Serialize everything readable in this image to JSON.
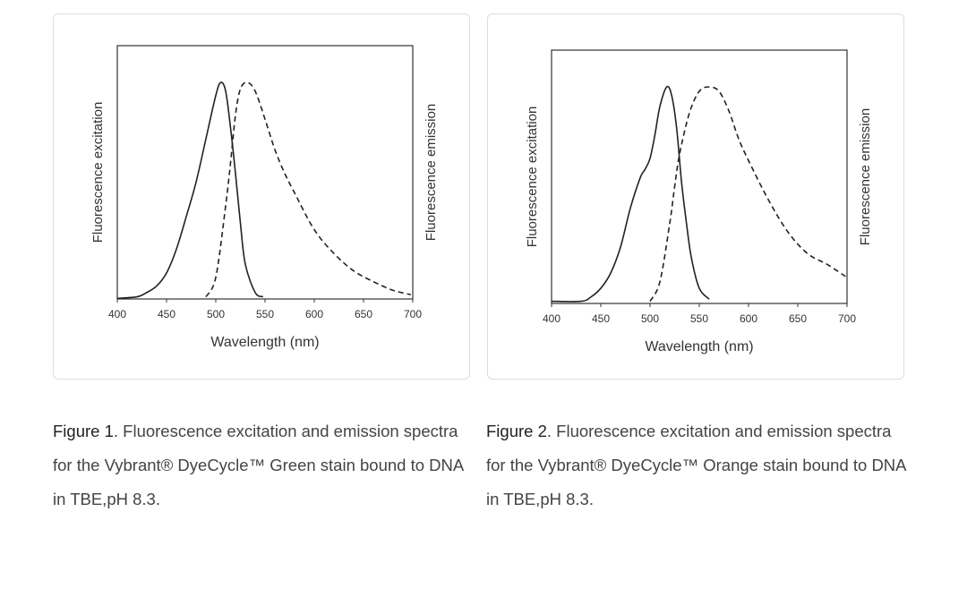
{
  "chart_data": [
    {
      "type": "line",
      "xlabel": "Wavelength (nm)",
      "ylabel": "Fluorescence excitation",
      "ylabel_right": "Fluorescence emission",
      "xlim": [
        400,
        700
      ],
      "ylim": [
        0,
        1.17
      ],
      "xticks": [
        "400",
        "450",
        "500",
        "550",
        "600",
        "650",
        "700"
      ],
      "grid": false,
      "series": [
        {
          "style": "solid",
          "x": [
            400,
            420,
            430,
            440,
            450,
            460,
            470,
            480,
            490,
            500,
            505,
            510,
            515,
            520,
            525,
            530,
            540,
            548
          ],
          "y": [
            0.003,
            0.01,
            0.03,
            0.06,
            0.12,
            0.23,
            0.38,
            0.54,
            0.74,
            0.94,
            1.0,
            0.96,
            0.79,
            0.58,
            0.35,
            0.16,
            0.03,
            0.01
          ]
        },
        {
          "style": "dashed",
          "x": [
            490,
            500,
            510,
            515,
            520,
            525,
            532,
            540,
            550,
            560,
            570,
            580,
            600,
            620,
            640,
            660,
            680,
            698
          ],
          "y": [
            0.01,
            0.1,
            0.43,
            0.63,
            0.85,
            0.97,
            1.0,
            0.96,
            0.83,
            0.69,
            0.58,
            0.49,
            0.32,
            0.21,
            0.13,
            0.08,
            0.04,
            0.02
          ]
        }
      ]
    },
    {
      "type": "line",
      "xlabel": "Wavelength (nm)",
      "ylabel": "Fluorescence excitation",
      "ylabel_right": "Fluorescence emission",
      "xlim": [
        400,
        700
      ],
      "ylim": [
        0,
        1.17
      ],
      "xticks": [
        "400",
        "450",
        "500",
        "550",
        "600",
        "650",
        "700"
      ],
      "grid": false,
      "series": [
        {
          "style": "solid",
          "x": [
            400,
            430,
            440,
            450,
            460,
            470,
            480,
            490,
            495,
            500,
            505,
            510,
            517,
            522,
            527,
            532,
            537,
            542,
            550,
            560
          ],
          "y": [
            0.01,
            0.01,
            0.03,
            0.07,
            0.14,
            0.26,
            0.44,
            0.58,
            0.62,
            0.67,
            0.78,
            0.91,
            1.0,
            0.96,
            0.81,
            0.56,
            0.37,
            0.21,
            0.07,
            0.02
          ]
        },
        {
          "style": "dashed",
          "x": [
            500,
            510,
            520,
            525,
            530,
            540,
            550,
            560,
            570,
            580,
            590,
            600,
            620,
            640,
            660,
            680,
            700
          ],
          "y": [
            0.01,
            0.1,
            0.37,
            0.54,
            0.69,
            0.88,
            0.98,
            1.0,
            0.98,
            0.89,
            0.76,
            0.66,
            0.48,
            0.33,
            0.23,
            0.18,
            0.12
          ]
        }
      ]
    }
  ],
  "captions": [
    {
      "label": "Figure 1",
      "text": ". Fluorescence excitation and emission spectra for the Vybrant® DyeCycle™ Green stain bound to DNA in TBE,pH 8.3."
    },
    {
      "label": "Figure 2",
      "text": ". Fluorescence excitation and emission spectra for the Vybrant® DyeCycle™ Orange stain bound to DNA in TBE,pH 8.3."
    }
  ]
}
